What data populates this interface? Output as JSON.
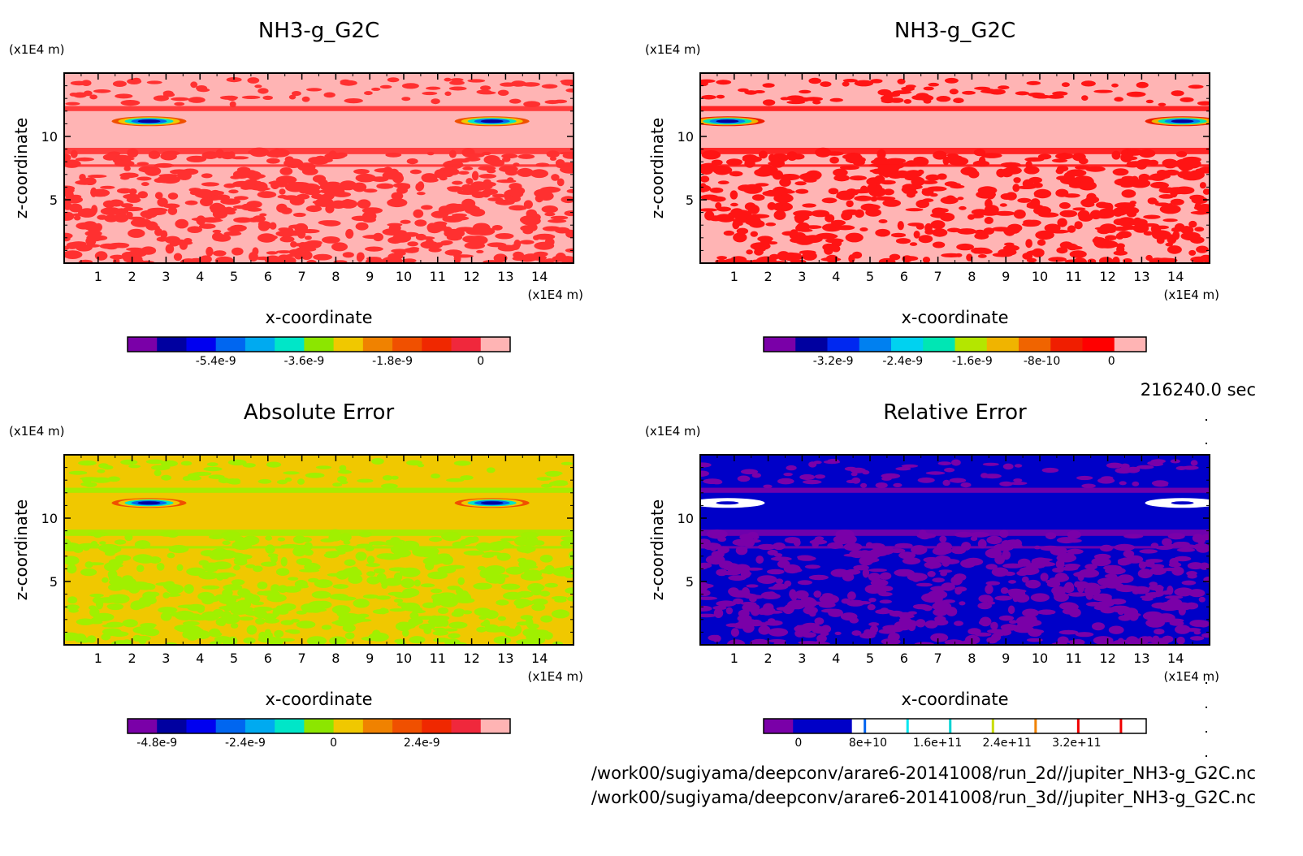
{
  "timestamp": "216240.0 sec",
  "footer": {
    "file_2d": "/work00/sugiyama/deepconv/arare6-20141008/run_2d//jupiter_NH3-g_G2C.nc",
    "file_3d": "/work00/sugiyama/deepconv/arare6-20141008/run_3d//jupiter_NH3-g_G2C.nc"
  },
  "chart_data": [
    {
      "type": "heatmap",
      "title": "NH3-g_G2C",
      "xlabel": "x-coordinate",
      "ylabel": "z-coordinate",
      "x_unit": "(x1E4 m)",
      "y_unit": "(x1E4 m)",
      "xlim": [
        0,
        15
      ],
      "ylim": [
        0,
        15
      ],
      "x_ticks": [
        1,
        2,
        3,
        4,
        5,
        6,
        7,
        8,
        9,
        10,
        11,
        12,
        13,
        14
      ],
      "y_ticks": [
        5,
        10
      ],
      "colorbar": {
        "colors": [
          "#7a00a8",
          "#0000a0",
          "#0000f0",
          "#0066f0",
          "#00aaf0",
          "#00e6c8",
          "#8ce600",
          "#f0c800",
          "#f08200",
          "#f05000",
          "#f02800",
          "#f0283c",
          "#ffb4b4"
        ],
        "tick_labels": [
          "-5.4e-9",
          "-3.6e-9",
          "-1.8e-9",
          "0"
        ],
        "tick_values": [
          -5.4e-09,
          -3.6e-09,
          -1.8e-09,
          0
        ],
        "range": [
          -7.2e-09,
          6e-10
        ]
      },
      "field": {
        "background": "#ffb4b4",
        "pattern": "#ff3030",
        "anomaly_z": 11.2,
        "anomaly_x": [
          2.5,
          12.6
        ]
      }
    },
    {
      "type": "heatmap",
      "title": "NH3-g_G2C",
      "xlabel": "x-coordinate",
      "ylabel": "z-coordinate",
      "x_unit": "(x1E4 m)",
      "y_unit": "(x1E4 m)",
      "xlim": [
        0,
        15
      ],
      "ylim": [
        0,
        15
      ],
      "x_ticks": [
        1,
        2,
        3,
        4,
        5,
        6,
        7,
        8,
        9,
        10,
        11,
        12,
        13,
        14
      ],
      "y_ticks": [
        5,
        10
      ],
      "colorbar": {
        "colors": [
          "#7a00a8",
          "#0000a0",
          "#0028f0",
          "#0080f0",
          "#00d2f0",
          "#00e6b4",
          "#b4e600",
          "#f0b400",
          "#f06400",
          "#f01e00",
          "#ff0000",
          "#ffb4b4"
        ],
        "tick_labels": [
          "-3.2e-9",
          "-2.4e-9",
          "-1.6e-9",
          "-8e-10",
          "0"
        ],
        "tick_values": [
          -3.2e-09,
          -2.4e-09,
          -1.6e-09,
          -8e-10,
          0
        ],
        "range": [
          -4e-09,
          4e-10
        ]
      },
      "field": {
        "background": "#ffb4b4",
        "pattern": "#ff1414",
        "anomaly_z": 11.2,
        "anomaly_x": [
          0.8,
          14.2
        ]
      }
    },
    {
      "type": "heatmap",
      "title": "Absolute Error",
      "xlabel": "x-coordinate",
      "ylabel": "z-coordinate",
      "x_unit": "(x1E4 m)",
      "y_unit": "(x1E4 m)",
      "xlim": [
        0,
        15
      ],
      "ylim": [
        0,
        15
      ],
      "x_ticks": [
        1,
        2,
        3,
        4,
        5,
        6,
        7,
        8,
        9,
        10,
        11,
        12,
        13,
        14
      ],
      "y_ticks": [
        5,
        10
      ],
      "colorbar": {
        "colors": [
          "#7a00a8",
          "#0000a0",
          "#0000f0",
          "#0066f0",
          "#00aaf0",
          "#00e6c8",
          "#8ce600",
          "#f0c800",
          "#f08200",
          "#f05000",
          "#f02800",
          "#f0283c",
          "#ffb4b4"
        ],
        "tick_labels": [
          "-4.8e-9",
          "-2.4e-9",
          "0",
          "2.4e-9"
        ],
        "tick_values": [
          -4.8e-09,
          -2.4e-09,
          0,
          2.4e-09
        ],
        "range": [
          -5.6e-09,
          4.8e-09
        ]
      },
      "field": {
        "background": "#f0c800",
        "pattern": "#a0f000",
        "anomaly_z": 11.2,
        "anomaly_x": [
          2.5,
          12.6
        ]
      }
    },
    {
      "type": "heatmap",
      "title": "Relative Error",
      "xlabel": "x-coordinate",
      "ylabel": "z-coordinate",
      "x_unit": "(x1E4 m)",
      "y_unit": "(x1E4 m)",
      "xlim": [
        0,
        15
      ],
      "ylim": [
        0,
        15
      ],
      "x_ticks": [
        1,
        2,
        3,
        4,
        5,
        6,
        7,
        8,
        9,
        10,
        11,
        12,
        13,
        14
      ],
      "y_ticks": [
        5,
        10
      ],
      "colorbar": {
        "colors": [
          "#7a00a8",
          "#0000c8",
          "#0000c8",
          "#ffffff",
          "#ffffff",
          "#ffffff",
          "#ffffff",
          "#ffffff",
          "#ffffff",
          "#ffffff",
          "#ffffff",
          "#ffffff",
          "#ffffff"
        ],
        "markers": [
          "#0064f0",
          "#00e6f0",
          "#00d2d2",
          "#c8dc00",
          "#f08200",
          "#f00000",
          "#f00000"
        ],
        "tick_labels": [
          "0",
          "8e+10",
          "1.6e+11",
          "2.4e+11",
          "3.2e+11"
        ],
        "tick_values": [
          0,
          80000000000.0,
          160000000000.0,
          240000000000.0,
          320000000000.0
        ],
        "range": [
          -40000000000.0,
          400000000000.0
        ]
      },
      "field": {
        "background": "#0000c8",
        "pattern": "#7a00a8",
        "anomaly_z": 11.2,
        "anomaly_x": [
          0.8,
          14.2
        ]
      }
    }
  ]
}
